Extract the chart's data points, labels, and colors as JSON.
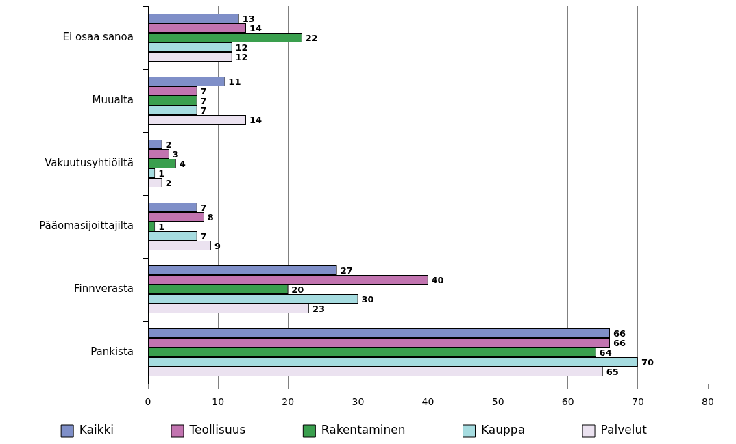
{
  "chart_data": {
    "type": "bar",
    "orientation": "horizontal",
    "categories": [
      "Ei osaa sanoa",
      "Muualta",
      "Vakuutusyhtiöiltä",
      "Pääomasijoittajilta",
      "Finnverasta",
      "Pankista"
    ],
    "series": [
      {
        "name": "Kaikki",
        "color": "#7f8fc8",
        "values": [
          13,
          11,
          2,
          7,
          27,
          66
        ]
      },
      {
        "name": "Teollisuus",
        "color": "#c274b0",
        "values": [
          14,
          7,
          3,
          8,
          40,
          66
        ]
      },
      {
        "name": "Rakentaminen",
        "color": "#3a9f4e",
        "values": [
          22,
          7,
          4,
          1,
          20,
          64
        ]
      },
      {
        "name": "Kauppa",
        "color": "#a6dce0",
        "values": [
          12,
          7,
          1,
          7,
          30,
          70
        ]
      },
      {
        "name": "Palvelut",
        "color": "#ebe2f0",
        "values": [
          12,
          14,
          2,
          9,
          23,
          65
        ]
      }
    ],
    "xlim": [
      0,
      80
    ],
    "xticks": [
      0,
      10,
      20,
      30,
      40,
      50,
      60,
      70,
      80
    ],
    "grid": "x",
    "legend": "bottom",
    "data_labels": true
  }
}
